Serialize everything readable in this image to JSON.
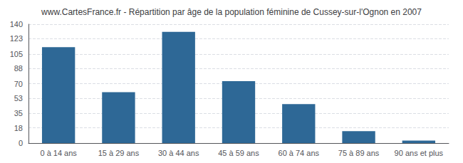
{
  "chart_data": {
    "type": "bar",
    "title": "www.CartesFrance.fr - Répartition par âge de la population féminine de Cussey-sur-l'Ognon en 2007",
    "categories": [
      "0 à 14 ans",
      "15 à 29 ans",
      "30 à 44 ans",
      "45 à 59 ans",
      "60 à 74 ans",
      "75 à 89 ans",
      "90 ans et plus"
    ],
    "values": [
      113,
      60,
      131,
      73,
      46,
      14,
      3
    ],
    "color": "#2e6896",
    "ylim": [
      0,
      140
    ],
    "yticks": [
      0,
      18,
      35,
      53,
      70,
      88,
      105,
      123,
      140
    ],
    "grid": true
  }
}
